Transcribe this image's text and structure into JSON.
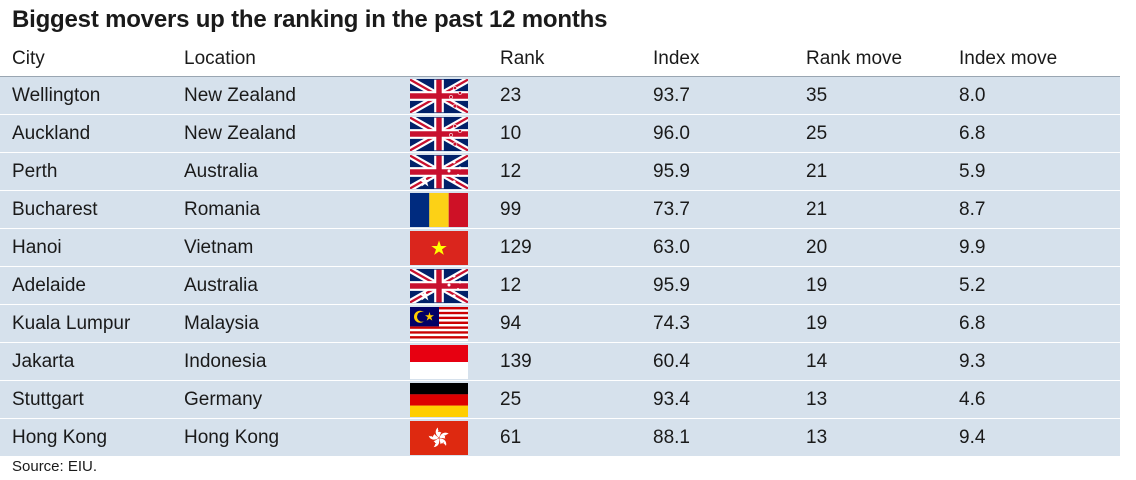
{
  "title": "Biggest movers up the ranking in the past 12 months",
  "source": "Source: EIU.",
  "colors": {
    "row_bg": "#d6e1ec",
    "header_rule": "#9aa6b2"
  },
  "chart_data": {
    "type": "table",
    "title": "Biggest movers up the ranking in the past 12 months",
    "columns": [
      "City",
      "Location",
      "",
      "Rank",
      "Index",
      "Rank move",
      "Index move"
    ],
    "rows": [
      {
        "city": "Wellington",
        "location": "New Zealand",
        "flag": "nz-flag-icon",
        "rank": "23",
        "index": "93.7",
        "rank_move": "35",
        "index_move": "8.0"
      },
      {
        "city": "Auckland",
        "location": "New Zealand",
        "flag": "nz-flag-icon",
        "rank": "10",
        "index": "96.0",
        "rank_move": "25",
        "index_move": "6.8"
      },
      {
        "city": "Perth",
        "location": "Australia",
        "flag": "au-flag-icon",
        "rank": "12",
        "index": "95.9",
        "rank_move": "21",
        "index_move": "5.9"
      },
      {
        "city": "Bucharest",
        "location": "Romania",
        "flag": "ro-flag-icon",
        "rank": "99",
        "index": "73.7",
        "rank_move": "21",
        "index_move": "8.7"
      },
      {
        "city": "Hanoi",
        "location": "Vietnam",
        "flag": "vn-flag-icon",
        "rank": "129",
        "index": "63.0",
        "rank_move": "20",
        "index_move": "9.9"
      },
      {
        "city": "Adelaide",
        "location": "Australia",
        "flag": "au-flag-icon",
        "rank": "12",
        "index": "95.9",
        "rank_move": "19",
        "index_move": "5.2"
      },
      {
        "city": "Kuala Lumpur",
        "location": "Malaysia",
        "flag": "my-flag-icon",
        "rank": "94",
        "index": "74.3",
        "rank_move": "19",
        "index_move": "6.8"
      },
      {
        "city": "Jakarta",
        "location": "Indonesia",
        "flag": "id-flag-icon",
        "rank": "139",
        "index": "60.4",
        "rank_move": "14",
        "index_move": "9.3"
      },
      {
        "city": "Stuttgart",
        "location": "Germany",
        "flag": "de-flag-icon",
        "rank": "25",
        "index": "93.4",
        "rank_move": "13",
        "index_move": "4.6"
      },
      {
        "city": "Hong Kong",
        "location": "Hong Kong",
        "flag": "hk-flag-icon",
        "rank": "61",
        "index": "88.1",
        "rank_move": "13",
        "index_move": "9.4"
      }
    ]
  }
}
